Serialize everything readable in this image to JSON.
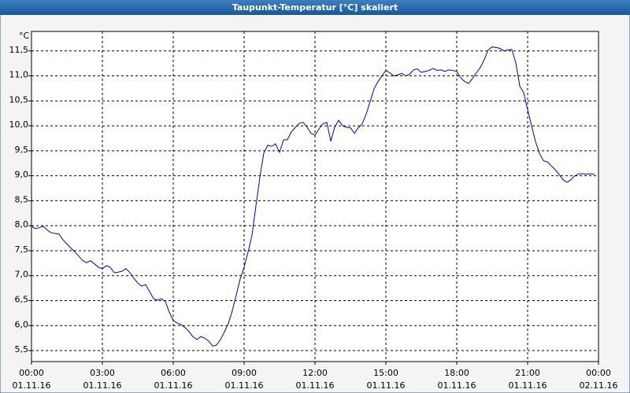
{
  "chart_data": {
    "type": "line",
    "title": "Taupunkt-Temperatur [°C] skaliert",
    "y_unit": "°C",
    "xlim": [
      0,
      24
    ],
    "xticks": [
      {
        "value": 0,
        "label": "00:00",
        "date": "01.11.16"
      },
      {
        "value": 3,
        "label": "03:00",
        "date": "01.11.16"
      },
      {
        "value": 6,
        "label": "06:00",
        "date": "01.11.16"
      },
      {
        "value": 9,
        "label": "09:00",
        "date": "01.11.16"
      },
      {
        "value": 12,
        "label": "12:00",
        "date": "01.11.16"
      },
      {
        "value": 15,
        "label": "15:00",
        "date": "01.11.16"
      },
      {
        "value": 18,
        "label": "18:00",
        "date": "01.11.16"
      },
      {
        "value": 21,
        "label": "21:00",
        "date": "01.11.16"
      },
      {
        "value": 24,
        "label": "00:00",
        "date": "02.11.16"
      }
    ],
    "ylim": [
      5.28,
      11.89
    ],
    "yticks": [
      {
        "value": 5.5,
        "label": "5,5"
      },
      {
        "value": 6,
        "label": "6,0"
      },
      {
        "value": 6.5,
        "label": "6,5"
      },
      {
        "value": 7,
        "label": "7,0"
      },
      {
        "value": 7.5,
        "label": "7,5"
      },
      {
        "value": 8,
        "label": "8,0"
      },
      {
        "value": 8.5,
        "label": "8,5"
      },
      {
        "value": 9,
        "label": "9,0"
      },
      {
        "value": 9.5,
        "label": "9,5"
      },
      {
        "value": 10,
        "label": "10,0"
      },
      {
        "value": 10.5,
        "label": "10,5"
      },
      {
        "value": 11,
        "label": "11,0"
      },
      {
        "value": 11.5,
        "label": "11,5"
      }
    ],
    "grid": true,
    "x": [
      0,
      0.17,
      0.33,
      0.5,
      0.67,
      0.83,
      1.17,
      1.33,
      1.67,
      1.83,
      2.17,
      2.33,
      2.5,
      2.83,
      3,
      3.17,
      3.33,
      3.5,
      3.67,
      3.83,
      4,
      4.17,
      4.33,
      4.5,
      4.67,
      4.83,
      5,
      5.17,
      5.33,
      5.5,
      5.67,
      5.83,
      6,
      6.17,
      6.33,
      6.5,
      6.67,
      6.83,
      7,
      7.17,
      7.33,
      7.5,
      7.67,
      7.83,
      8,
      8.17,
      8.33,
      8.5,
      8.67,
      8.83,
      9,
      9.17,
      9.33,
      9.5,
      9.67,
      9.83,
      10,
      10.17,
      10.33,
      10.5,
      10.67,
      10.83,
      11,
      11.17,
      11.33,
      11.5,
      11.67,
      11.83,
      12,
      12.17,
      12.33,
      12.5,
      12.67,
      12.83,
      13,
      13.17,
      13.33,
      13.5,
      13.67,
      13.83,
      14,
      14.17,
      14.33,
      14.5,
      14.67,
      14.83,
      15,
      15.17,
      15.33,
      15.5,
      15.67,
      15.83,
      16,
      16.17,
      16.33,
      16.5,
      16.67,
      16.83,
      17,
      17.17,
      17.33,
      17.5,
      17.67,
      17.83,
      18,
      18.17,
      18.33,
      18.5,
      18.67,
      18.83,
      19,
      19.17,
      19.33,
      19.5,
      19.67,
      19.83,
      20,
      20.17,
      20.33,
      20.5,
      20.67,
      20.83,
      21,
      21.17,
      21.33,
      21.5,
      21.67,
      21.83,
      22,
      22.17,
      22.33,
      22.5,
      22.67,
      22.83,
      23,
      23.17,
      23.33,
      23.5,
      23.67,
      23.83
    ],
    "series": [
      {
        "color": "#0000cc",
        "values": [
          7.99,
          7.94,
          7.96,
          7.99,
          7.91,
          7.86,
          7.83,
          7.72,
          7.55,
          7.48,
          7.3,
          7.26,
          7.3,
          7.17,
          7.14,
          7.2,
          7.17,
          7.06,
          7.07,
          7.09,
          7.14,
          7.06,
          6.95,
          6.85,
          6.79,
          6.82,
          6.68,
          6.54,
          6.51,
          6.54,
          6.48,
          6.27,
          6.1,
          6.05,
          6.02,
          5.96,
          5.88,
          5.78,
          5.72,
          5.78,
          5.75,
          5.69,
          5.59,
          5.61,
          5.72,
          5.88,
          6.04,
          6.3,
          6.62,
          6.93,
          7.17,
          7.48,
          7.8,
          8.4,
          8.98,
          9.45,
          9.61,
          9.59,
          9.64,
          9.47,
          9.72,
          9.72,
          9.88,
          9.97,
          10.05,
          10.07,
          9.97,
          9.85,
          9.81,
          9.94,
          10.04,
          10.07,
          9.69,
          9.97,
          10.11,
          10.0,
          9.97,
          9.96,
          9.85,
          9.96,
          10.04,
          10.24,
          10.48,
          10.74,
          10.89,
          11.0,
          11.11,
          11.06,
          11.0,
          11.02,
          11.05,
          11.0,
          11.03,
          11.12,
          11.14,
          11.07,
          11.09,
          11.11,
          11.15,
          11.11,
          11.12,
          11.09,
          11.12,
          11.11,
          11.09,
          10.96,
          10.89,
          10.85,
          10.95,
          11.06,
          11.17,
          11.33,
          11.52,
          11.58,
          11.57,
          11.55,
          11.5,
          11.52,
          11.53,
          11.26,
          10.79,
          10.67,
          10.32,
          10.0,
          9.69,
          9.45,
          9.3,
          9.28,
          9.2,
          9.12,
          9.03,
          8.92,
          8.87,
          8.92,
          9.0,
          9.04,
          9.04,
          9.03,
          9.04,
          9.03
        ]
      }
    ]
  }
}
